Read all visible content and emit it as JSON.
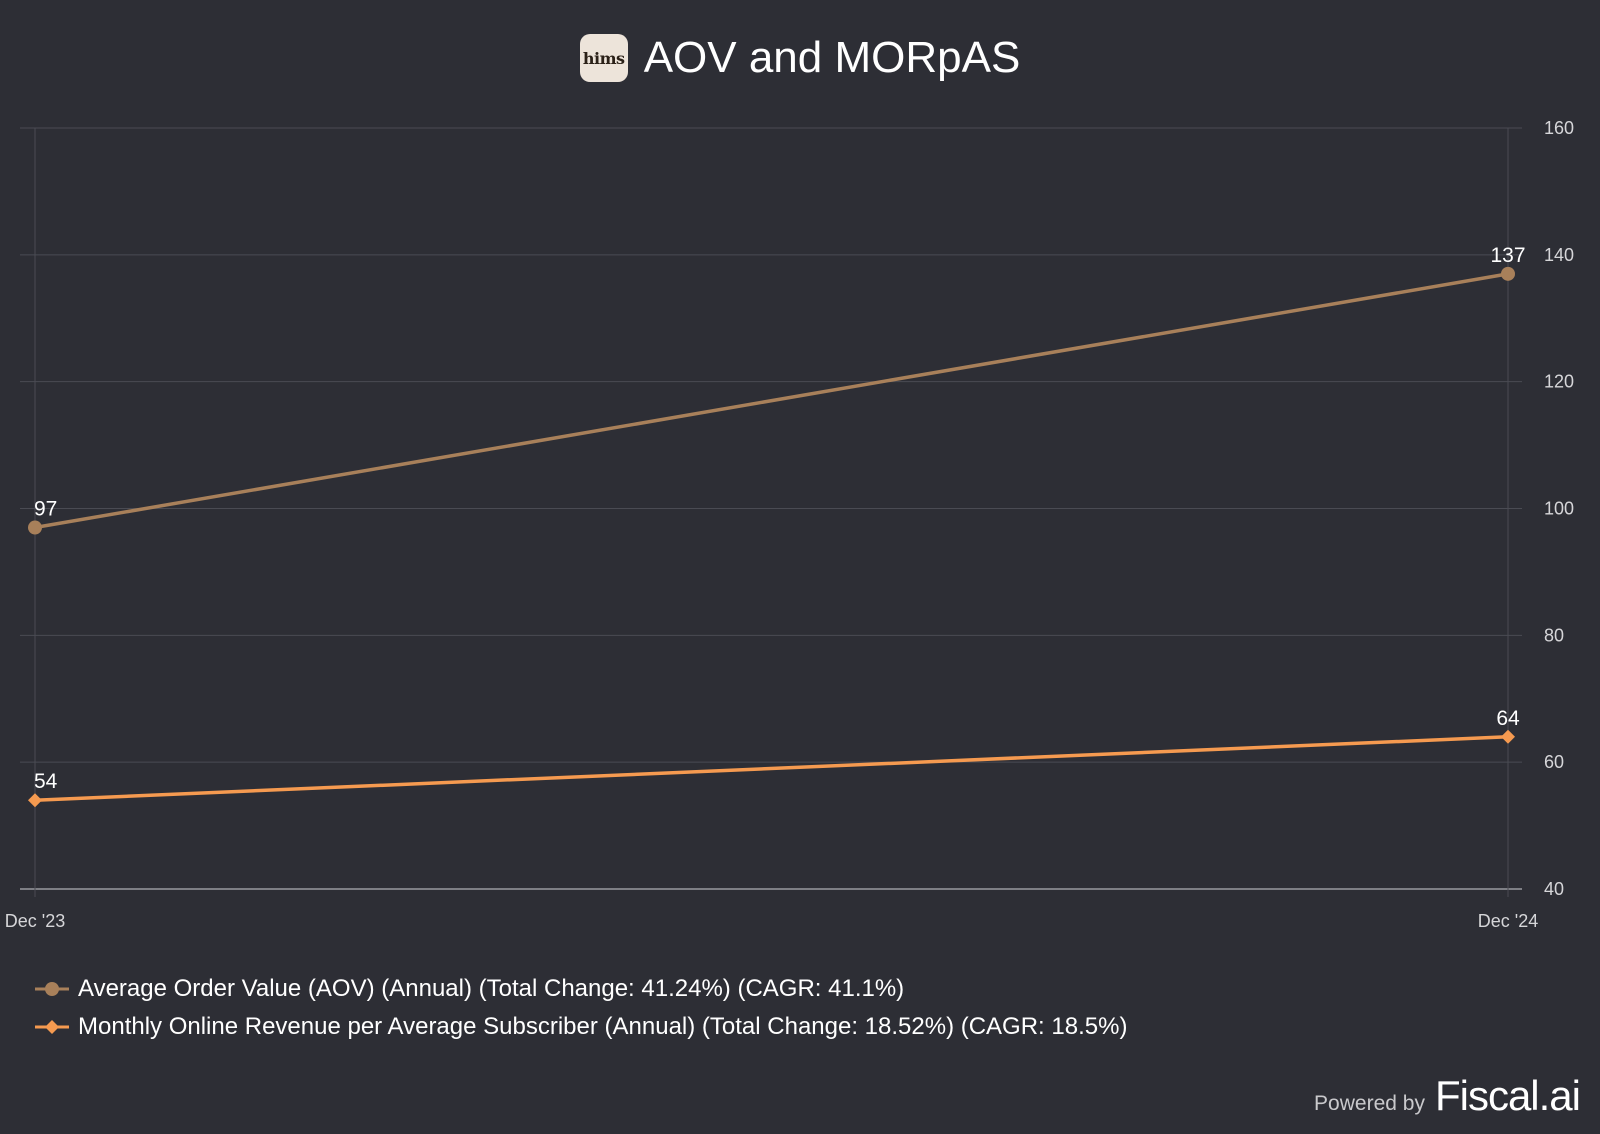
{
  "header": {
    "logo_text": "hims",
    "title": "AOV and MORpAS"
  },
  "colors": {
    "background": "#2d2e35",
    "grid": "#4a4b53",
    "axis_text": "#d6d6d9",
    "aov": "#a8805a",
    "morpas": "#f59a50"
  },
  "chart_data": {
    "type": "line",
    "x": [
      "Dec '23",
      "Dec '24"
    ],
    "y_axis_position": "right",
    "ylim": [
      40,
      160
    ],
    "yticks": [
      40,
      60,
      80,
      100,
      120,
      140,
      160
    ],
    "grid": true,
    "legend_position": "bottom-left",
    "series": [
      {
        "name": "Average Order Value (AOV) (Annual) (Total Change: 41.24%) (CAGR: 41.1%)",
        "values": [
          97,
          137
        ],
        "labels": [
          "97",
          "137"
        ],
        "marker": "circle",
        "color": "#a8805a"
      },
      {
        "name": "Monthly Online Revenue per Average Subscriber (Annual) (Total Change: 18.52%) (CAGR: 18.5%)",
        "values": [
          54,
          64
        ],
        "labels": [
          "54",
          "64"
        ],
        "marker": "diamond",
        "color": "#f59a50"
      }
    ]
  },
  "footer": {
    "powered_by": "Powered by",
    "brand": "Fiscal.ai"
  }
}
